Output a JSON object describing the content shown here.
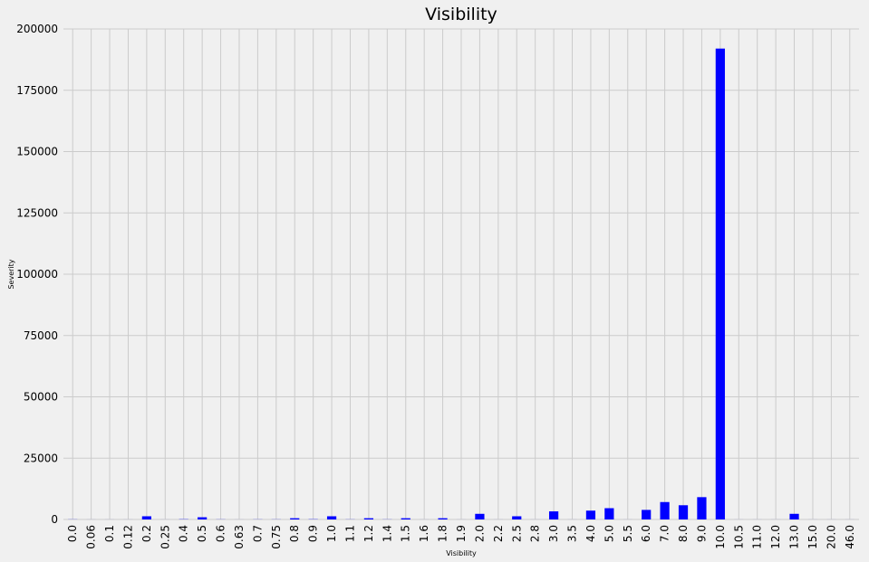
{
  "chart_data": {
    "type": "bar",
    "title": "Visibility",
    "xlabel": "Visibility",
    "ylabel": "Severity",
    "ylim": [
      0,
      200000
    ],
    "yticks": [
      0,
      25000,
      50000,
      75000,
      100000,
      125000,
      150000,
      175000,
      200000
    ],
    "ytick_labels": [
      "0",
      "25000",
      "50000",
      "75000",
      "100000",
      "125000",
      "150000",
      "175000",
      "200000"
    ],
    "grid": true,
    "bar_color": "#0000ff",
    "categories": [
      "0.0",
      "0.06",
      "0.1",
      "0.12",
      "0.2",
      "0.25",
      "0.4",
      "0.5",
      "0.6",
      "0.63",
      "0.7",
      "0.75",
      "0.8",
      "0.9",
      "1.0",
      "1.1",
      "1.2",
      "1.4",
      "1.5",
      "1.6",
      "1.8",
      "1.9",
      "2.0",
      "2.2",
      "2.5",
      "2.8",
      "3.0",
      "3.5",
      "4.0",
      "5.0",
      "5.5",
      "6.0",
      "7.0",
      "8.0",
      "9.0",
      "10.0",
      "10.5",
      "11.0",
      "12.0",
      "13.0",
      "15.0",
      "20.0",
      "46.0"
    ],
    "values": [
      50,
      10,
      10,
      10,
      1300,
      10,
      100,
      900,
      50,
      10,
      50,
      50,
      500,
      100,
      1300,
      50,
      500,
      50,
      500,
      10,
      500,
      10,
      2300,
      10,
      1300,
      10,
      3300,
      10,
      3600,
      4600,
      10,
      3900,
      7100,
      5800,
      9100,
      192000,
      10,
      10,
      10,
      2300,
      10,
      10,
      10
    ]
  }
}
